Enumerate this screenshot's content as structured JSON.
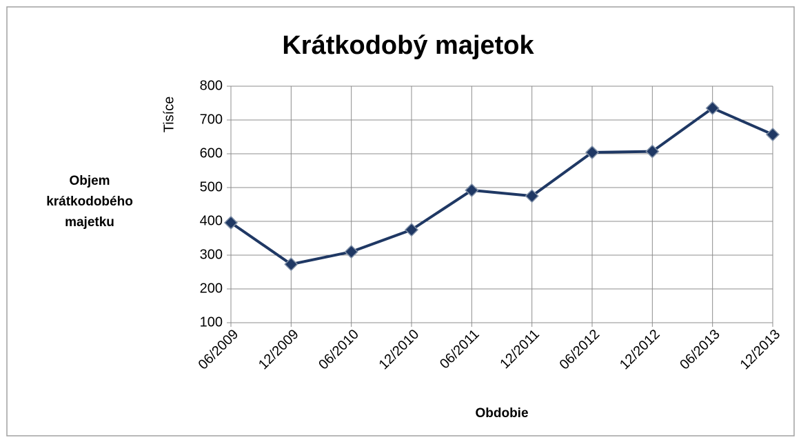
{
  "chart_data": {
    "type": "line",
    "title": "Krátkodobý majetok",
    "y_unit_label": "Tisíce",
    "y_axis_label": "Objem krátkodobého majetku",
    "x_axis_label": "Obdobie",
    "categories": [
      "06/2009",
      "12/2009",
      "06/2010",
      "12/2010",
      "06/2011",
      "12/2011",
      "06/2012",
      "12/2012",
      "06/2013",
      "12/2013"
    ],
    "values": [
      396,
      273,
      310,
      375,
      492,
      475,
      604,
      607,
      735,
      657
    ],
    "color": "#1f3864",
    "ylim": [
      100,
      800
    ],
    "yticks": [
      100,
      200,
      300,
      400,
      500,
      600,
      700,
      800
    ],
    "grid": true
  }
}
